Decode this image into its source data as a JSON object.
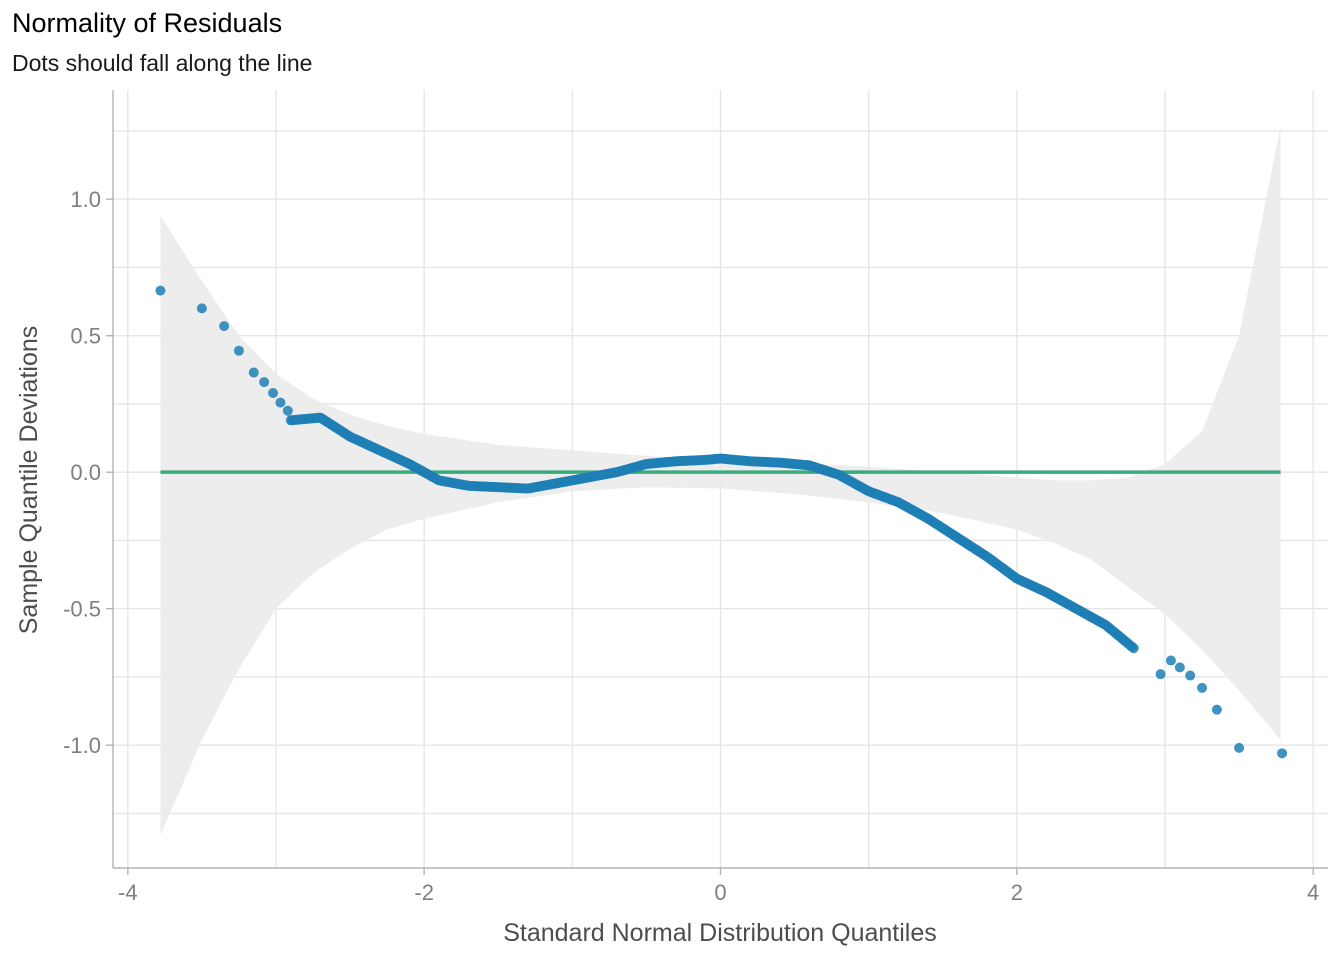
{
  "chart_data": {
    "type": "scatter",
    "title": "Normality of Residuals",
    "subtitle": "Dots should fall along the line",
    "xlabel": "Standard Normal Distribution Quantiles",
    "ylabel": "Sample Quantile Deviations",
    "xlim": [
      -4.1,
      4.1
    ],
    "ylim": [
      -1.45,
      1.4
    ],
    "x_ticks": [
      -4,
      -2,
      0,
      2,
      4
    ],
    "x_tick_labels": [
      "-4",
      "-2",
      "0",
      "2",
      "4"
    ],
    "y_ticks": [
      -1.0,
      -0.5,
      0.0,
      0.5,
      1.0
    ],
    "y_tick_labels": [
      "-1.0",
      "-0.5",
      "0.0",
      "0.5",
      "1.0"
    ],
    "grid": true,
    "colors": {
      "points": "#1f7fb5",
      "reference_line": "#3aaa7f",
      "band": "#ebebeb",
      "grid": "#e6e6e6",
      "axis": "#b3b3b3"
    },
    "reference_line": {
      "y": 0,
      "x_range": [
        -3.78,
        3.78
      ]
    },
    "confidence_band": {
      "x": [
        -3.78,
        -3.5,
        -3.25,
        -3.0,
        -2.75,
        -2.5,
        -2.25,
        -2.0,
        -1.5,
        -1.0,
        -0.5,
        0.0,
        0.5,
        1.0,
        1.5,
        2.0,
        2.25,
        2.5,
        2.75,
        3.0,
        3.25,
        3.5,
        3.78
      ],
      "upper": [
        0.94,
        0.7,
        0.5,
        0.36,
        0.27,
        0.21,
        0.17,
        0.14,
        0.1,
        0.08,
        0.06,
        0.045,
        0.035,
        0.02,
        0.0,
        -0.02,
        -0.03,
        -0.03,
        -0.02,
        0.03,
        0.15,
        0.5,
        1.27
      ],
      "lower": [
        -1.33,
        -0.98,
        -0.72,
        -0.5,
        -0.37,
        -0.28,
        -0.21,
        -0.17,
        -0.11,
        -0.07,
        -0.055,
        -0.06,
        -0.08,
        -0.11,
        -0.15,
        -0.21,
        -0.26,
        -0.32,
        -0.42,
        -0.52,
        -0.65,
        -0.8,
        -0.98
      ]
    },
    "points_curve": {
      "x": [
        -2.9,
        -2.7,
        -2.5,
        -2.3,
        -2.1,
        -1.9,
        -1.7,
        -1.5,
        -1.3,
        -1.1,
        -0.9,
        -0.7,
        -0.5,
        -0.3,
        -0.1,
        0.0,
        0.2,
        0.4,
        0.6,
        0.8,
        1.0,
        1.2,
        1.4,
        1.6,
        1.8,
        2.0,
        2.2,
        2.4,
        2.6,
        2.8
      ],
      "y": [
        0.19,
        0.2,
        0.13,
        0.08,
        0.03,
        -0.03,
        -0.05,
        -0.055,
        -0.06,
        -0.04,
        -0.02,
        0.0,
        0.03,
        0.04,
        0.045,
        0.05,
        0.04,
        0.035,
        0.025,
        -0.01,
        -0.07,
        -0.11,
        -0.17,
        -0.24,
        -0.31,
        -0.39,
        -0.44,
        -0.5,
        -0.56,
        -0.65
      ]
    },
    "points_extra": [
      {
        "x": -3.78,
        "y": 0.665
      },
      {
        "x": -3.5,
        "y": 0.6
      },
      {
        "x": -3.35,
        "y": 0.535
      },
      {
        "x": -3.25,
        "y": 0.445
      },
      {
        "x": -3.15,
        "y": 0.365
      },
      {
        "x": -3.08,
        "y": 0.33
      },
      {
        "x": -3.02,
        "y": 0.29
      },
      {
        "x": -2.97,
        "y": 0.255
      },
      {
        "x": -2.92,
        "y": 0.225
      },
      {
        "x": 2.97,
        "y": -0.74
      },
      {
        "x": 3.04,
        "y": -0.69
      },
      {
        "x": 3.1,
        "y": -0.715
      },
      {
        "x": 3.17,
        "y": -0.745
      },
      {
        "x": 3.25,
        "y": -0.79
      },
      {
        "x": 3.35,
        "y": -0.87
      },
      {
        "x": 3.5,
        "y": -1.01
      },
      {
        "x": 3.79,
        "y": -1.03
      }
    ]
  }
}
